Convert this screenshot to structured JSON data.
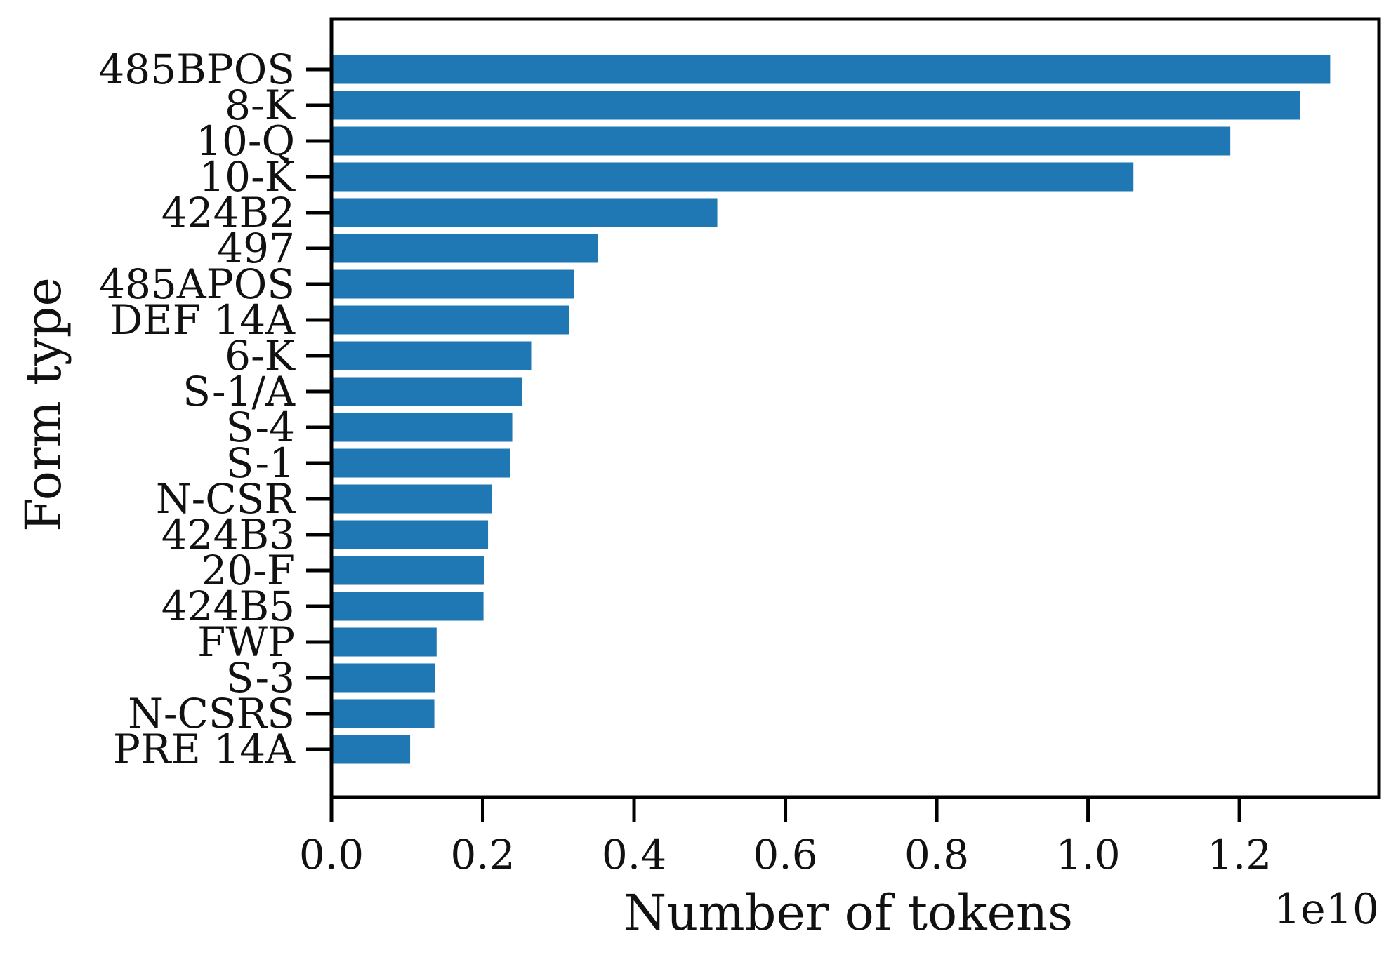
{
  "chart_data": {
    "type": "bar",
    "orientation": "horizontal",
    "categories": [
      "485BPOS",
      "8-K",
      "10-Q",
      "10-K",
      "424B2",
      "497",
      "485APOS",
      "DEF 14A",
      "6-K",
      "S-1/A",
      "S-4",
      "S-1",
      "N-CSR",
      "424B3",
      "20-F",
      "424B5",
      "FWP",
      "S-3",
      "N-CSRS",
      "PRE 14A"
    ],
    "values": [
      13200000000.0,
      12800000000.0,
      11880000000.0,
      10600000000.0,
      5100000000.0,
      3520000000.0,
      3210000000.0,
      3140000000.0,
      2640000000.0,
      2520000000.0,
      2390000000.0,
      2360000000.0,
      2120000000.0,
      2070000000.0,
      2020000000.0,
      2010000000.0,
      1390000000.0,
      1370000000.0,
      1360000000.0,
      1040000000.0
    ],
    "xlabel": "Number of tokens",
    "ylabel": "Form type",
    "xlim": [
      0,
      13846000000.0
    ],
    "x_ticks": [
      0.0,
      0.2,
      0.4,
      0.6,
      0.8,
      1.0,
      1.2
    ],
    "x_tick_labels": [
      "0.0",
      "0.2",
      "0.4",
      "0.6",
      "0.8",
      "1.0",
      "1.2"
    ],
    "x_scale_label": "1e10",
    "bar_color": "#1f77b4",
    "grid": false
  }
}
